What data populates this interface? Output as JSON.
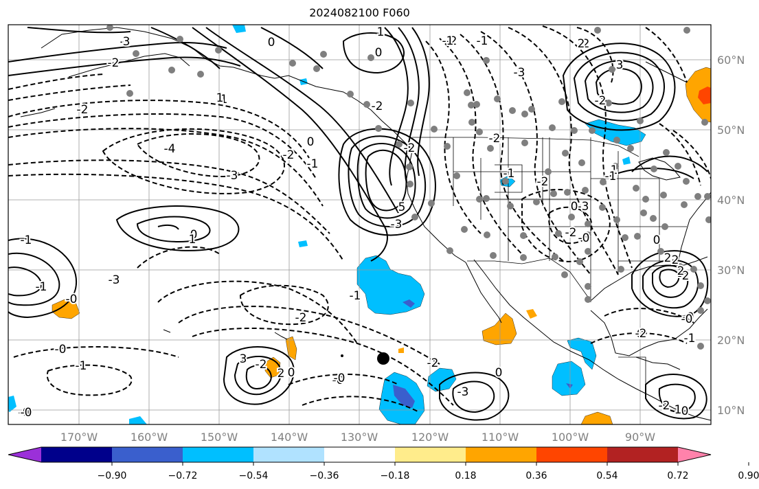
{
  "title": "2024082100 F060",
  "lat_labels": [
    "60°N",
    "50°N",
    "40°N",
    "30°N",
    "20°N",
    "10°N"
  ],
  "lon_labels": [
    "170°W",
    "160°W",
    "150°W",
    "140°W",
    "130°W",
    "120°W",
    "110°W",
    "100°W",
    "90°W"
  ],
  "contour_labels": {
    "negative": [
      "-3",
      "-2",
      "-2",
      "-1",
      "-4",
      "-3",
      "-2",
      "-1",
      "-1",
      "-2",
      "0",
      "-0",
      "-1",
      "-0",
      "-2",
      "-2",
      "-1",
      "-3",
      "-2",
      "-2",
      "-1",
      "-2",
      "-3",
      "-2",
      "-0",
      "0",
      "-2",
      "-2",
      "-1",
      "-0",
      "-2",
      "-0",
      "-0"
    ],
    "positive": [
      "-1",
      "0",
      "3",
      "-2",
      "0",
      "1",
      "5",
      "-3",
      "1",
      "-1",
      "0",
      "0",
      "2",
      "3",
      "-2",
      "1",
      "0",
      "2",
      "2",
      "0",
      "0",
      "-3",
      "-2",
      "3",
      "-2",
      "2",
      "-1",
      "-0",
      "-3",
      "1",
      "-0",
      "0",
      "1",
      "-1",
      "-0",
      "-2",
      "-0"
    ]
  },
  "colorbar": {
    "colors": [
      "#9b30d9",
      "#00008b",
      "#3a5fcd",
      "#00bfff",
      "#b0e2ff",
      "#ffffff",
      "#ffec8b",
      "#ffa500",
      "#ff4500",
      "#b22222",
      "#ff82ab"
    ],
    "tick_labels": [
      "−0.90",
      "−0.72",
      "−0.54",
      "−0.36",
      "−0.18",
      "0.18",
      "0.36",
      "0.54",
      "0.72",
      "0.90"
    ]
  },
  "tropical_system_marker": "tropical-cyclone-center"
}
